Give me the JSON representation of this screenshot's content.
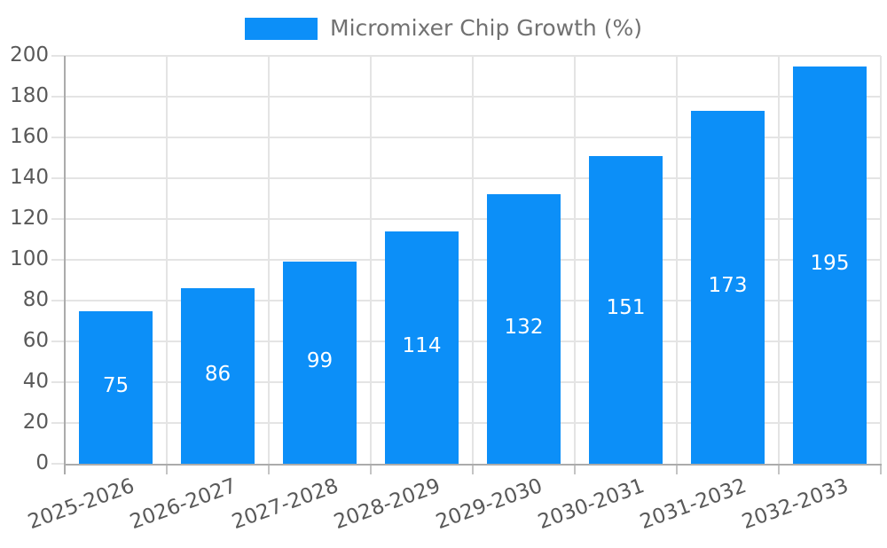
{
  "legend": {
    "label": "Micromixer Chip Growth (%)",
    "swatch_color": "#0c8ff8"
  },
  "chart_data": {
    "type": "bar",
    "title": "Micromixer Chip Growth (%)",
    "series": [
      {
        "name": "Micromixer Chip Growth (%)",
        "values": [
          75,
          86,
          99,
          114,
          132,
          151,
          173,
          195
        ]
      }
    ],
    "categories": [
      "2025-2026",
      "2026-2027",
      "2027-2028",
      "2028-2029",
      "2029-2030",
      "2030-2031",
      "2031-2032",
      "2032-2033"
    ],
    "xlabel": "",
    "ylabel": "",
    "ylim": [
      0,
      200
    ],
    "ytick_step": 20,
    "grid": true,
    "legend_position": "top-center",
    "bar_color": "#0c8ff8",
    "value_label_position": "inside-center",
    "x_label_rotation_deg": -20
  },
  "colors": {
    "background": "#ffffff",
    "grid": "#e4e4e4",
    "axis": "#ababab",
    "xtick_mark": "#c4c4c4",
    "tick_text": "#595959",
    "legend_text": "#717171",
    "value_label_text": "#ffffff"
  }
}
